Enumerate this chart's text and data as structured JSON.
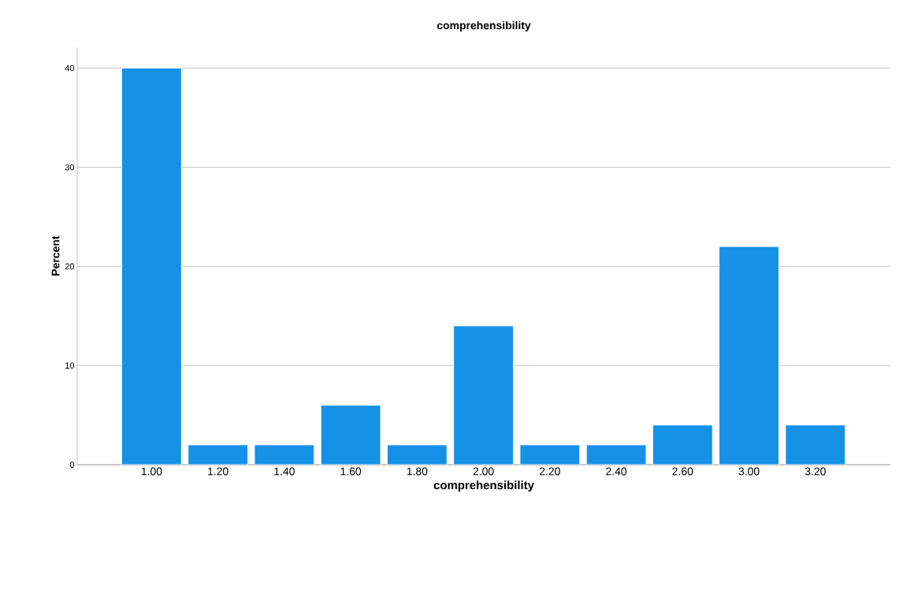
{
  "chart_data": {
    "type": "bar",
    "title": "comprehensibility",
    "xlabel": "comprehensibility",
    "ylabel": "Percent",
    "categories": [
      "1.00",
      "1.20",
      "1.40",
      "1.60",
      "1.80",
      "2.00",
      "2.20",
      "2.40",
      "2.60",
      "3.00",
      "3.20"
    ],
    "values": [
      40,
      2,
      2,
      6,
      2,
      14,
      2,
      2,
      4,
      22,
      4
    ],
    "color": "#1591e8",
    "ylim": [
      0,
      42.1
    ],
    "yticks": [
      0,
      10,
      20,
      30,
      40
    ],
    "grid": "y"
  }
}
